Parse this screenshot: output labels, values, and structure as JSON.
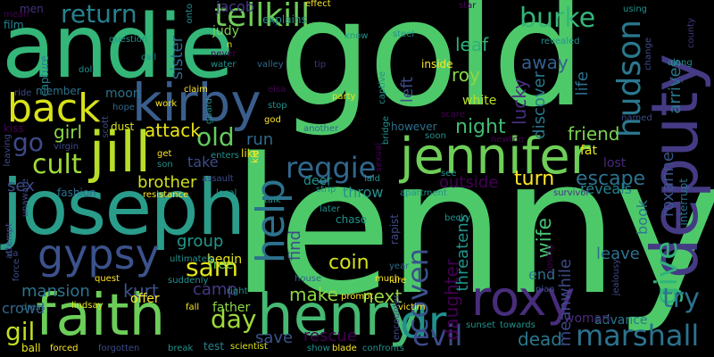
{
  "words": [
    {
      "key": "lenny",
      "text": "lenny"
    },
    {
      "key": "gold",
      "text": "gold"
    },
    {
      "key": "andie",
      "text": "andie"
    },
    {
      "key": "joseph",
      "text": "joseph"
    },
    {
      "key": "faith",
      "text": "faith"
    },
    {
      "key": "deputy",
      "text": "deputy"
    },
    {
      "key": "jennifer",
      "text": "jennifer"
    },
    {
      "key": "kirby",
      "text": "kirby"
    },
    {
      "key": "henry",
      "text": "henry"
    },
    {
      "key": "gypsy",
      "text": "gypsy"
    },
    {
      "key": "roxy",
      "text": "roxy"
    },
    {
      "key": "jill",
      "text": "jill"
    },
    {
      "key": "back",
      "text": "back"
    },
    {
      "key": "tellkill",
      "text": "tellkill"
    },
    {
      "key": "dr",
      "text": "dr"
    },
    {
      "key": "help",
      "text": "help"
    },
    {
      "key": "marshall",
      "text": "marshall"
    },
    {
      "key": "reggie",
      "text": "reggie"
    },
    {
      "key": "cult",
      "text": "cult"
    },
    {
      "key": "give",
      "text": "give"
    },
    {
      "key": "hudson",
      "text": "hudson"
    },
    {
      "key": "evil",
      "text": "evil"
    },
    {
      "key": "coven",
      "text": "coven"
    },
    {
      "key": "burke",
      "text": "burke"
    },
    {
      "key": "return",
      "text": "return"
    },
    {
      "key": "sam",
      "text": "sam"
    },
    {
      "key": "old",
      "text": "old"
    },
    {
      "key": "day",
      "text": "day"
    },
    {
      "key": "go",
      "text": "go"
    },
    {
      "key": "try",
      "text": "try"
    },
    {
      "key": "escape",
      "text": "escape"
    },
    {
      "key": "turn",
      "text": "turn"
    },
    {
      "key": "gil",
      "text": "gil"
    },
    {
      "key": "attack",
      "text": "attack"
    },
    {
      "key": "night",
      "text": "night"
    },
    {
      "key": "friend",
      "text": "friend"
    },
    {
      "key": "coin",
      "text": "coin"
    },
    {
      "key": "wife",
      "text": "wife"
    },
    {
      "key": "daughter",
      "text": "daughter"
    },
    {
      "key": "roy",
      "text": "roy"
    },
    {
      "key": "leaf",
      "text": "leaf"
    },
    {
      "key": "away",
      "text": "away"
    },
    {
      "key": "lucky",
      "text": "lucky"
    },
    {
      "key": "kurt",
      "text": "kurt"
    },
    {
      "key": "next",
      "text": "next"
    },
    {
      "key": "make",
      "text": "make"
    },
    {
      "key": "mansion",
      "text": "mansion"
    },
    {
      "key": "dead",
      "text": "dead"
    },
    {
      "key": "rescue",
      "text": "rescue"
    },
    {
      "key": "save",
      "text": "save"
    },
    {
      "key": "outside",
      "text": "outside"
    },
    {
      "key": "jacob",
      "text": "jacob"
    },
    {
      "key": "brother",
      "text": "brother"
    },
    {
      "key": "group",
      "text": "group"
    },
    {
      "key": "crowd",
      "text": "crowd"
    },
    {
      "key": "threatens",
      "text": "threatens"
    },
    {
      "key": "meanwhile",
      "text": "meanwhile"
    },
    {
      "key": "roxanne",
      "text": "roxanne"
    },
    {
      "key": "arrives",
      "text": "arrives"
    },
    {
      "key": "life",
      "text": "life"
    },
    {
      "key": "discover",
      "text": "discover"
    },
    {
      "key": "left",
      "text": "left"
    },
    {
      "key": "white",
      "text": "white"
    },
    {
      "key": "leave",
      "text": "leave"
    },
    {
      "key": "end",
      "text": "end"
    },
    {
      "key": "book",
      "text": "book"
    },
    {
      "key": "find",
      "text": "find"
    },
    {
      "key": "camp",
      "text": "camp"
    },
    {
      "key": "girl",
      "text": "girl"
    },
    {
      "key": "sex",
      "text": "sex"
    },
    {
      "key": "run",
      "text": "run"
    },
    {
      "key": "take",
      "text": "take"
    },
    {
      "key": "sister",
      "text": "sister"
    },
    {
      "key": "free",
      "text": "free"
    },
    {
      "key": "begin",
      "text": "begin"
    },
    {
      "key": "father",
      "text": "father"
    },
    {
      "key": "offer",
      "text": "offer"
    },
    {
      "key": "advance",
      "text": "advance"
    },
    {
      "key": "woman",
      "text": "woman"
    },
    {
      "key": "fat",
      "text": "fat"
    },
    {
      "key": "lost",
      "text": "lost"
    },
    {
      "key": "reveals",
      "text": "reveals"
    },
    {
      "key": "interrupt",
      "text": "interrupt"
    },
    {
      "key": "county",
      "text": "county"
    },
    {
      "key": "throw",
      "text": "throw"
    },
    {
      "key": "deer",
      "text": "deer"
    },
    {
      "key": "moon",
      "text": "moon"
    },
    {
      "key": "member",
      "text": "member"
    },
    {
      "key": "kiss",
      "text": "kiss"
    },
    {
      "key": "like",
      "text": "like"
    },
    {
      "key": "dust",
      "text": "dust"
    },
    {
      "key": "fashion",
      "text": "fashion"
    },
    {
      "key": "film",
      "text": "film"
    },
    {
      "key": "men",
      "text": "men"
    },
    {
      "key": "capture",
      "text": "capture"
    },
    {
      "key": "ride",
      "text": "ride"
    },
    {
      "key": "hope",
      "text": "hope"
    },
    {
      "key": "judy",
      "text": "judy"
    },
    {
      "key": "explains",
      "text": "explains"
    },
    {
      "key": "water",
      "text": "water"
    },
    {
      "key": "valley",
      "text": "valley"
    },
    {
      "key": "tip",
      "text": "tip"
    },
    {
      "key": "claim",
      "text": "claim"
    },
    {
      "key": "work",
      "text": "work"
    },
    {
      "key": "god",
      "text": "god"
    },
    {
      "key": "another",
      "text": "another"
    },
    {
      "key": "however",
      "text": "however"
    },
    {
      "key": "soon",
      "text": "soon"
    },
    {
      "key": "party",
      "text": "party"
    },
    {
      "key": "inside",
      "text": "inside"
    },
    {
      "key": "steel",
      "text": "steel"
    },
    {
      "key": "know",
      "text": "know"
    },
    {
      "key": "captive",
      "text": "captive"
    },
    {
      "key": "leaving",
      "text": "leaving"
    },
    {
      "key": "test",
      "text": "test"
    },
    {
      "key": "scientist",
      "text": "scientist"
    },
    {
      "key": "show",
      "text": "show"
    },
    {
      "key": "blade",
      "text": "blade"
    },
    {
      "key": "confronts",
      "text": "confronts"
    },
    {
      "key": "towards",
      "text": "towards"
    },
    {
      "key": "sunset",
      "text": "sunset"
    },
    {
      "key": "victim",
      "text": "victim"
    },
    {
      "key": "much",
      "text": "much"
    },
    {
      "key": "prompt",
      "text": "prompt"
    },
    {
      "key": "house",
      "text": "house"
    },
    {
      "key": "forced",
      "text": "forced"
    },
    {
      "key": "ball",
      "text": "ball"
    },
    {
      "key": "break",
      "text": "break"
    },
    {
      "key": "dress",
      "text": "dress"
    },
    {
      "key": "lindsay",
      "text": "lindsay"
    },
    {
      "key": "quest",
      "text": "quest"
    },
    {
      "key": "force",
      "text": "force"
    },
    {
      "key": "attempt",
      "text": "attempt"
    },
    {
      "key": "unaware",
      "text": "unaware"
    },
    {
      "key": "resistance",
      "text": "resistance"
    },
    {
      "key": "local",
      "text": "local"
    },
    {
      "key": "assault",
      "text": "assault"
    },
    {
      "key": "enters",
      "text": "enters"
    },
    {
      "key": "get",
      "text": "get"
    },
    {
      "key": "son",
      "text": "son"
    },
    {
      "key": "apartment",
      "text": "apartment"
    },
    {
      "key": "survivor",
      "text": "survivor"
    },
    {
      "key": "laid",
      "text": "laid"
    },
    {
      "key": "see",
      "text": "see"
    },
    {
      "key": "chase",
      "text": "chase"
    },
    {
      "key": "becky",
      "text": "becky"
    },
    {
      "key": "later",
      "text": "later"
    },
    {
      "key": "talk",
      "text": "talk"
    },
    {
      "key": "strip",
      "text": "strip"
    },
    {
      "key": "rapist",
      "text": "rapist"
    },
    {
      "key": "plan",
      "text": "plan"
    },
    {
      "key": "lure",
      "text": "lure"
    },
    {
      "key": "year",
      "text": "year"
    },
    {
      "key": "jealousy",
      "text": "jealousy"
    },
    {
      "key": "named",
      "text": "named"
    },
    {
      "key": "onto",
      "text": "onto"
    },
    {
      "key": "question",
      "text": "question"
    },
    {
      "key": "call",
      "text": "call"
    },
    {
      "key": "doll",
      "text": "doll"
    },
    {
      "key": "effect",
      "text": "effect"
    },
    {
      "key": "using",
      "text": "using"
    },
    {
      "key": "change",
      "text": "change"
    },
    {
      "key": "revealed",
      "text": "revealed"
    },
    {
      "key": "along",
      "text": "along"
    },
    {
      "key": "tall",
      "text": "tall"
    },
    {
      "key": "n",
      "text": "n"
    },
    {
      "key": "ultimately",
      "text": "ultimately"
    },
    {
      "key": "suddenly",
      "text": "suddenly"
    },
    {
      "key": "right",
      "text": "right"
    },
    {
      "key": "fall",
      "text": "fall"
    },
    {
      "key": "kid",
      "text": "kid"
    },
    {
      "key": "forgotten",
      "text": "forgotten"
    },
    {
      "key": "stop",
      "text": "stop"
    },
    {
      "key": "guard",
      "text": "guard"
    },
    {
      "key": "virgin",
      "text": "virgin"
    },
    {
      "key": "scott",
      "text": "scott"
    },
    {
      "key": "encounter",
      "text": "encounter"
    },
    {
      "key": "bridge",
      "text": "bridge"
    },
    {
      "key": "sexual",
      "text": "sexual"
    },
    {
      "key": "never",
      "text": "never"
    },
    {
      "key": "da",
      "text": "da"
    },
    {
      "key": "scare",
      "text": "scare"
    },
    {
      "key": "newton",
      "text": "newton"
    },
    {
      "key": "elsa",
      "text": "elsa"
    },
    {
      "key": "closing",
      "text": "closing"
    },
    {
      "key": "star",
      "text": "star"
    },
    {
      "key": "men2",
      "text": "mean"
    }
  ]
}
